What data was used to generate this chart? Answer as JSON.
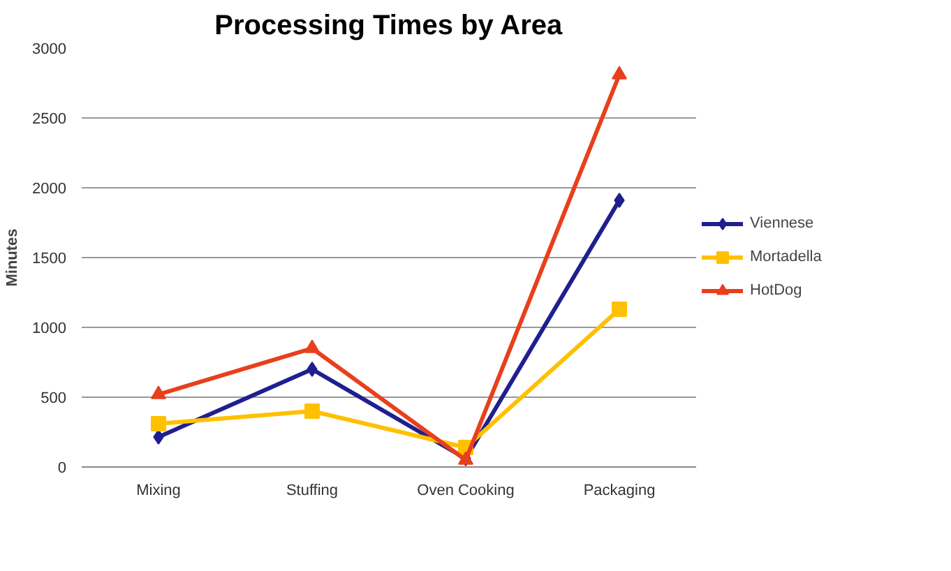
{
  "chart_data": {
    "type": "line",
    "title": "Processing Times by Area",
    "ylabel": "Minutes",
    "categories": [
      "Mixing",
      "Stuffing",
      "Oven Cooking",
      "Packaging"
    ],
    "series": [
      {
        "name": "Viennese",
        "color": "#1f1f8f",
        "marker": "diamond",
        "values": [
          215,
          700,
          60,
          1910
        ]
      },
      {
        "name": "Mortadella",
        "color": "#ffc000",
        "marker": "square",
        "values": [
          310,
          400,
          140,
          1130
        ]
      },
      {
        "name": "HotDog",
        "color": "#e8401c",
        "marker": "triangle",
        "values": [
          520,
          850,
          50,
          2810
        ]
      }
    ],
    "ylim": [
      0,
      3000
    ],
    "yticks": [
      0,
      500,
      1000,
      1500,
      2000,
      2500,
      3000
    ],
    "grid": "y",
    "legend": "right",
    "line_style": "solid"
  }
}
